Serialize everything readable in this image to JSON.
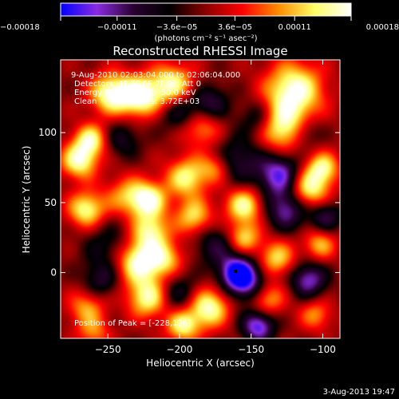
{
  "chart_data": {
    "type": "heatmap",
    "title": "Reconstructed RHESSI Image",
    "xlabel": "Heliocentric X (arcsec)",
    "ylabel": "Heliocentric Y (arcsec)",
    "xlim": [
      -283,
      -88
    ],
    "ylim": [
      -47,
      152
    ],
    "x_ticks": [
      -250,
      -200,
      -150,
      -100
    ],
    "y_ticks": [
      0,
      50,
      100
    ],
    "x_tick_labels": [
      "−250",
      "−200",
      "−150",
      "−100"
    ],
    "y_tick_labels": [
      "0",
      "50",
      "100"
    ],
    "colorbar": {
      "range": [
        -0.00018,
        0.00018
      ],
      "ticks": [
        -0.00018,
        -0.00011,
        -3.6e-05,
        3.6e-05,
        0.00011,
        0.00018
      ],
      "tick_labels": [
        "−0.00018",
        "−0.00011",
        "−3.6e−05",
        "3.6e−05",
        "0.00011",
        "0.00018"
      ],
      "unit_label": "(photons cm⁻² s⁻¹ asec⁻²)",
      "colors": [
        "#0000ff",
        "#8a2be2",
        "#2a0030",
        "#000000",
        "#8b0000",
        "#ff0000",
        "#ff8c00",
        "#ffff66",
        "#ffffff"
      ]
    },
    "annotations": [
      "9-Aug-2010 02:03:04.000 to 02:06:04.000",
      "Detectors: 4F 5F 6F 7F 8F, Att 0",
      "Energy Range: 25.0 - 50.0 keV",
      "Clean    Total counts: 3.72E+03",
      "Position of Peak = [-228,126]"
    ],
    "peak_position": [
      -228,
      126
    ],
    "marker_position": [
      -161,
      1
    ],
    "footer_date": "3-Aug-2013 19:47",
    "blobs": [
      {
        "x": -248,
        "y": 128,
        "a": 0.95,
        "s": 10
      },
      {
        "x": -228,
        "y": 126,
        "a": 1.0,
        "s": 10
      },
      {
        "x": -205,
        "y": 133,
        "a": 0.9,
        "s": 11
      },
      {
        "x": -120,
        "y": 130,
        "a": 1.0,
        "s": 14
      },
      {
        "x": -128,
        "y": 103,
        "a": 0.85,
        "s": 12
      },
      {
        "x": -185,
        "y": 105,
        "a": 0.65,
        "s": 10
      },
      {
        "x": -270,
        "y": 80,
        "a": 0.9,
        "s": 9
      },
      {
        "x": -265,
        "y": 45,
        "a": 0.85,
        "s": 9
      },
      {
        "x": -262,
        "y": 95,
        "a": 0.8,
        "s": 8
      },
      {
        "x": -238,
        "y": 55,
        "a": 0.5,
        "s": 10
      },
      {
        "x": -222,
        "y": 52,
        "a": 0.95,
        "s": 9
      },
      {
        "x": -220,
        "y": 30,
        "a": 0.75,
        "s": 9
      },
      {
        "x": -228,
        "y": 8,
        "a": 1.0,
        "s": 11
      },
      {
        "x": -222,
        "y": -18,
        "a": 0.85,
        "s": 10
      },
      {
        "x": -195,
        "y": 68,
        "a": 0.8,
        "s": 10
      },
      {
        "x": -190,
        "y": 40,
        "a": 0.7,
        "s": 9
      },
      {
        "x": -210,
        "y": 10,
        "a": 0.6,
        "s": 9
      },
      {
        "x": -180,
        "y": -25,
        "a": 0.95,
        "s": 10
      },
      {
        "x": -198,
        "y": -38,
        "a": 0.8,
        "s": 8
      },
      {
        "x": -155,
        "y": 48,
        "a": 0.85,
        "s": 9
      },
      {
        "x": -155,
        "y": 25,
        "a": 0.7,
        "s": 8
      },
      {
        "x": -175,
        "y": 75,
        "a": 0.55,
        "s": 8
      },
      {
        "x": -140,
        "y": -18,
        "a": 0.75,
        "s": 9
      },
      {
        "x": -132,
        "y": 10,
        "a": 0.7,
        "s": 9
      },
      {
        "x": -110,
        "y": 60,
        "a": 0.9,
        "s": 10
      },
      {
        "x": -100,
        "y": 75,
        "a": 0.75,
        "s": 8
      },
      {
        "x": -102,
        "y": 20,
        "a": 0.6,
        "s": 8
      },
      {
        "x": -265,
        "y": -25,
        "a": 0.55,
        "s": 9
      },
      {
        "x": -260,
        "y": -43,
        "a": 0.45,
        "s": 8
      },
      {
        "x": -105,
        "y": -30,
        "a": 0.5,
        "s": 8
      },
      {
        "x": -250,
        "y": 20,
        "a": -0.35,
        "s": 12
      },
      {
        "x": -200,
        "y": 115,
        "a": -0.55,
        "s": 10
      },
      {
        "x": -180,
        "y": 120,
        "a": -0.6,
        "s": 10
      },
      {
        "x": -160,
        "y": 80,
        "a": -0.5,
        "s": 12
      },
      {
        "x": -130,
        "y": 70,
        "a": -0.85,
        "s": 11
      },
      {
        "x": -125,
        "y": 45,
        "a": -0.7,
        "s": 10
      },
      {
        "x": -160,
        "y": 0,
        "a": -1.0,
        "s": 9
      },
      {
        "x": -150,
        "y": -10,
        "a": -0.7,
        "s": 10
      },
      {
        "x": -145,
        "y": -38,
        "a": -0.9,
        "s": 8
      },
      {
        "x": -175,
        "y": 20,
        "a": -0.45,
        "s": 10
      },
      {
        "x": -200,
        "y": -15,
        "a": -0.45,
        "s": 10
      },
      {
        "x": -110,
        "y": -5,
        "a": -0.75,
        "s": 9
      },
      {
        "x": -98,
        "y": 40,
        "a": -0.55,
        "s": 8
      },
      {
        "x": -255,
        "y": -5,
        "a": -0.45,
        "s": 9
      },
      {
        "x": -240,
        "y": 95,
        "a": -0.4,
        "s": 9
      },
      {
        "x": -145,
        "y": 110,
        "a": -0.45,
        "s": 9
      },
      {
        "x": -112,
        "y": 100,
        "a": -0.4,
        "s": 8
      }
    ]
  }
}
